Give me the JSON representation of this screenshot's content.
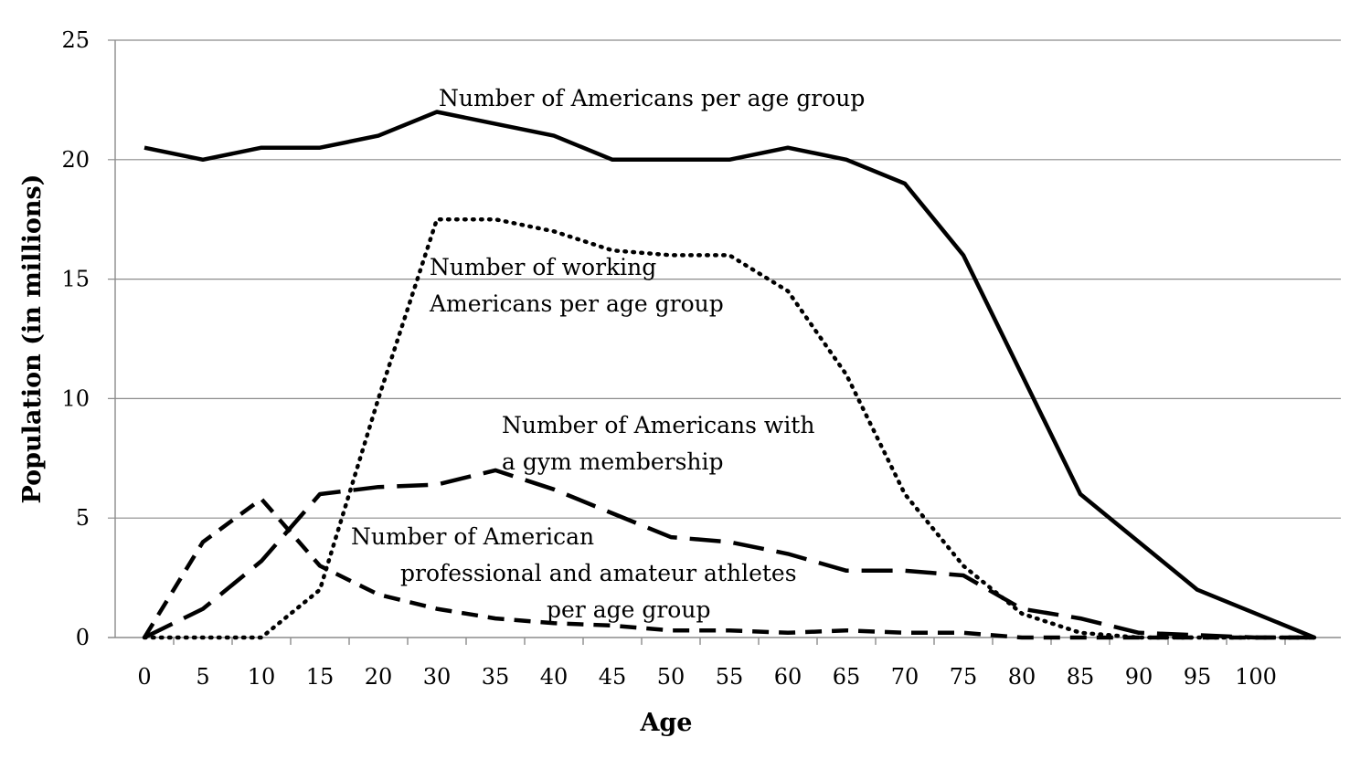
{
  "chart_data": {
    "type": "line",
    "title": "",
    "xlabel": "Age",
    "ylabel": "Population  (in millions)",
    "ylim": [
      0,
      25
    ],
    "yticks": [
      "0",
      "5",
      "10",
      "15",
      "20",
      "25"
    ],
    "categories": [
      "0",
      "5",
      "10",
      "15",
      "20",
      "30",
      "35",
      "40",
      "45",
      "50",
      "55",
      "60",
      "65",
      "70",
      "75",
      "80",
      "85",
      "90",
      "95",
      "100",
      ""
    ],
    "grid": true,
    "legend": "none",
    "series": [
      {
        "name": "Number of Americans per age group",
        "style": "solid",
        "values": [
          20.5,
          20,
          20.5,
          20.5,
          21,
          22,
          21.5,
          21,
          20,
          20,
          20,
          20.5,
          20,
          19,
          16,
          11,
          6,
          4,
          2,
          1,
          0
        ]
      },
      {
        "name": "Number of working Americans per age group",
        "style": "dotted",
        "values": [
          0,
          0,
          0,
          2,
          10,
          17.5,
          17.5,
          17,
          16.2,
          16,
          16,
          14.5,
          11,
          6,
          3,
          1,
          0.2,
          0,
          0,
          0,
          0
        ]
      },
      {
        "name": "Number of Americans with a gym membership",
        "style": "long-dash",
        "values": [
          0,
          1.2,
          3.2,
          6,
          6.3,
          6.4,
          7,
          6.2,
          5.2,
          4.2,
          4,
          3.5,
          2.8,
          2.8,
          2.6,
          1.2,
          0.8,
          0.2,
          0.1,
          0,
          0
        ]
      },
      {
        "name": "Number of American professional and amateur athletes per age group",
        "style": "short-dash",
        "x_positions": [
          0,
          1,
          2,
          3,
          4,
          5,
          6,
          7,
          8,
          9,
          10,
          11,
          12,
          13,
          14,
          15,
          16,
          17,
          18,
          19,
          20
        ],
        "values": [
          0,
          4,
          5.8,
          3,
          1.8,
          1.2,
          0.8,
          0.6,
          0.5,
          0.3,
          0.3,
          0.2,
          0.3,
          0.2,
          0.2,
          0,
          0,
          0,
          0,
          0,
          0
        ]
      }
    ],
    "annotations": [
      {
        "lines": [
          "Number of Americans per age group"
        ]
      },
      {
        "lines": [
          "Number of working",
          "Americans per age group"
        ]
      },
      {
        "lines": [
          "Number of Americans with",
          "a gym membership"
        ]
      },
      {
        "lines": [
          "Number of American",
          "professional  and amateur athletes",
          "per age group"
        ]
      }
    ]
  }
}
